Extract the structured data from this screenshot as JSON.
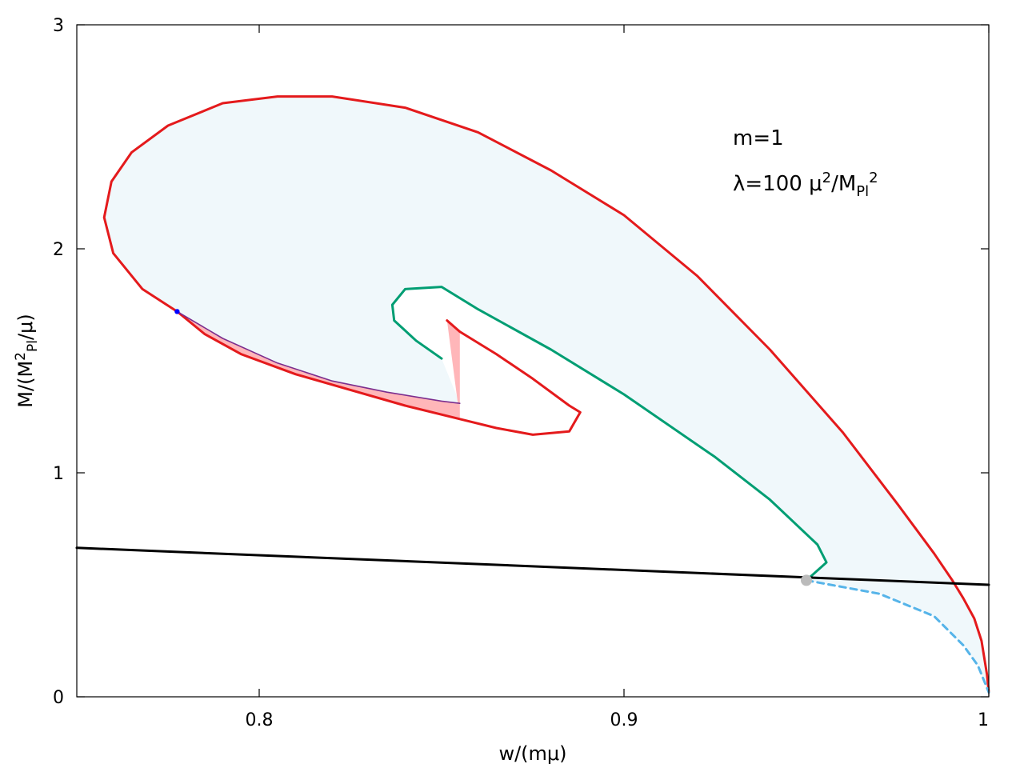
{
  "chart_data": {
    "type": "line",
    "title": "",
    "xlabel": "w/(mμ)",
    "ylabel": {
      "pre": "M/(M",
      "sup": "2",
      "sub": "Pl",
      "post": "/μ)"
    },
    "xlim": [
      0.75,
      1.0
    ],
    "ylim": [
      0,
      3
    ],
    "x_ticks": [
      {
        "value": 0.8,
        "label": "0.8"
      },
      {
        "value": 0.9,
        "label": "0.9"
      },
      {
        "value": 1.0,
        "label": "1"
      }
    ],
    "y_ticks": [
      {
        "value": 0,
        "label": "0"
      },
      {
        "value": 1,
        "label": "1"
      },
      {
        "value": 2,
        "label": "2"
      },
      {
        "value": 3,
        "label": "3"
      }
    ],
    "grid": false,
    "annotations": [
      {
        "id": "m",
        "text": "m=1"
      },
      {
        "id": "lambda",
        "parts": [
          "λ=100 μ",
          "2",
          "/M",
          "Pl",
          "2"
        ]
      }
    ],
    "colors": {
      "red": "#e41a1c",
      "green": "#009e73",
      "black": "#000000",
      "dashed": "#56b4e9",
      "shade": "#f0f8fb",
      "pink": "#ffb6b9",
      "purple": "#7b2d8e",
      "blue_point": "#0000ff",
      "gray_point": "#bbbbbb"
    },
    "series": [
      {
        "id": "red-outer",
        "style": "solid",
        "color": "red",
        "points": [
          [
            1.0,
            0.02
          ],
          [
            0.9995,
            0.1
          ],
          [
            0.998,
            0.25
          ],
          [
            0.996,
            0.35
          ],
          [
            0.993,
            0.44
          ],
          [
            0.99,
            0.52
          ],
          [
            0.985,
            0.64
          ],
          [
            0.975,
            0.86
          ],
          [
            0.96,
            1.18
          ],
          [
            0.94,
            1.55
          ],
          [
            0.92,
            1.88
          ],
          [
            0.9,
            2.15
          ],
          [
            0.88,
            2.35
          ],
          [
            0.86,
            2.52
          ],
          [
            0.84,
            2.63
          ],
          [
            0.82,
            2.68
          ],
          [
            0.805,
            2.68
          ],
          [
            0.79,
            2.65
          ],
          [
            0.775,
            2.55
          ],
          [
            0.765,
            2.43
          ],
          [
            0.7595,
            2.3
          ],
          [
            0.7575,
            2.14
          ],
          [
            0.76,
            1.98
          ],
          [
            0.768,
            1.82
          ],
          [
            0.7775,
            1.72
          ]
        ]
      },
      {
        "id": "red-inner",
        "style": "solid",
        "color": "red",
        "points": [
          [
            0.7775,
            1.72
          ],
          [
            0.785,
            1.62
          ],
          [
            0.795,
            1.53
          ],
          [
            0.81,
            1.44
          ],
          [
            0.825,
            1.37
          ],
          [
            0.84,
            1.3
          ],
          [
            0.855,
            1.24
          ],
          [
            0.865,
            1.2
          ],
          [
            0.875,
            1.17
          ],
          [
            0.885,
            1.185
          ],
          [
            0.888,
            1.27
          ],
          [
            0.885,
            1.3
          ],
          [
            0.875,
            1.42
          ],
          [
            0.865,
            1.53
          ],
          [
            0.855,
            1.63
          ],
          [
            0.8515,
            1.68
          ]
        ]
      },
      {
        "id": "green",
        "style": "solid",
        "color": "green",
        "points": [
          [
            0.95,
            0.52
          ],
          [
            0.9555,
            0.6
          ],
          [
            0.953,
            0.68
          ],
          [
            0.94,
            0.88
          ],
          [
            0.925,
            1.07
          ],
          [
            0.9,
            1.35
          ],
          [
            0.88,
            1.55
          ],
          [
            0.86,
            1.73
          ],
          [
            0.85,
            1.83
          ],
          [
            0.84,
            1.82
          ],
          [
            0.8365,
            1.75
          ],
          [
            0.837,
            1.68
          ],
          [
            0.843,
            1.59
          ],
          [
            0.85,
            1.51
          ]
        ]
      },
      {
        "id": "black",
        "style": "solid",
        "color": "black",
        "points": [
          [
            0.75,
            0.665
          ],
          [
            1.0,
            0.5
          ]
        ]
      },
      {
        "id": "dashed",
        "style": "dashed",
        "color": "dashed",
        "points": [
          [
            0.95,
            0.52
          ],
          [
            0.97,
            0.46
          ],
          [
            0.985,
            0.36
          ],
          [
            0.993,
            0.23
          ],
          [
            0.997,
            0.14
          ],
          [
            1.0,
            0.02
          ]
        ]
      },
      {
        "id": "purple",
        "style": "solid",
        "color": "purple",
        "points": [
          [
            0.7775,
            1.72
          ],
          [
            0.79,
            1.6
          ],
          [
            0.805,
            1.49
          ],
          [
            0.82,
            1.41
          ],
          [
            0.835,
            1.36
          ],
          [
            0.85,
            1.32
          ],
          [
            0.855,
            1.31
          ]
        ]
      }
    ],
    "points": [
      {
        "id": "blue-point",
        "x": 0.7775,
        "y": 1.72,
        "color": "blue_point",
        "size": "small"
      },
      {
        "id": "gray-point",
        "x": 0.95,
        "y": 0.52,
        "color": "gray_point",
        "size": "large"
      }
    ]
  }
}
